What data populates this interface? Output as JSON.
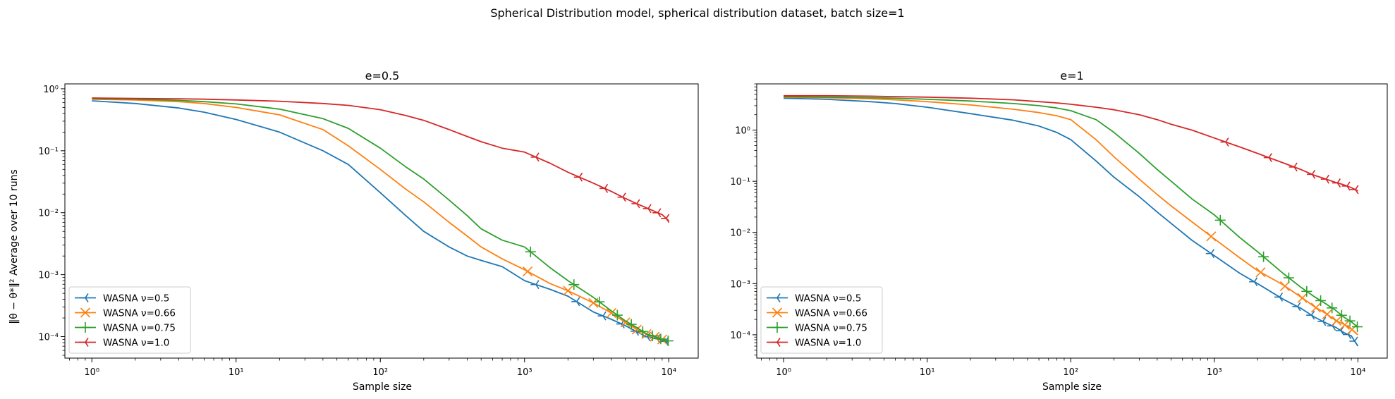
{
  "figure": {
    "suptitle": "Spherical Distribution model, spherical distribution dataset, batch size=1",
    "ylabel": "‖θ − θ*‖² Average over 10 runs"
  },
  "colors": {
    "WASNA ν=0.5": "#1f77b4",
    "WASNA ν=0.66": "#ff7f0e",
    "WASNA ν=0.75": "#2ca02c",
    "WASNA ν=1.0": "#d62728"
  },
  "markers": {
    "WASNA ν=0.5": "tri-left",
    "WASNA ν=0.66": "x",
    "WASNA ν=0.75": "plus",
    "WASNA ν=1.0": "tri-left"
  },
  "chart_data": [
    {
      "type": "line",
      "title": "e=0.5",
      "xlabel": "Sample size",
      "ylabel": "‖θ − θ*‖² Average over 10 runs",
      "xscale": "log",
      "yscale": "log",
      "xlim": [
        0.65,
        16000
      ],
      "ylim": [
        4.5e-05,
        1.2
      ],
      "xticks": [
        1,
        10,
        100,
        1000,
        10000
      ],
      "xtick_labels": [
        "10⁰",
        "10¹",
        "10²",
        "10³",
        "10⁴"
      ],
      "yticks": [
        0.0001,
        0.001,
        0.01,
        0.1,
        1
      ],
      "ytick_labels": [
        "10⁻⁴",
        "10⁻³",
        "10⁻²",
        "10⁻¹",
        "10⁰"
      ],
      "grid": false,
      "legend_position": "lower-left",
      "series": [
        {
          "name": "WASNA ν=0.5",
          "marker": "tri-left",
          "x": [
            1,
            2,
            4,
            6,
            10,
            20,
            40,
            60,
            100,
            150,
            200,
            300,
            400,
            500,
            700,
            1000,
            1500,
            2000,
            3000,
            4000,
            5000,
            6000,
            7000,
            8000,
            9000,
            10000
          ],
          "y": [
            0.64,
            0.58,
            0.49,
            0.42,
            0.32,
            0.2,
            0.1,
            0.06,
            0.021,
            0.009,
            0.005,
            0.0028,
            0.002,
            0.0017,
            0.00135,
            0.0008,
            0.00058,
            0.00045,
            0.00025,
            0.00019,
            0.00015,
            0.00012,
            0.0001,
            9.5e-05,
            8.8e-05,
            8e-05
          ],
          "markers_x": [
            1200,
            2300,
            3500,
            4700,
            5900,
            7100,
            8300,
            9500
          ]
        },
        {
          "name": "WASNA ν=0.66",
          "marker": "x",
          "x": [
            1,
            2,
            4,
            6,
            10,
            20,
            40,
            60,
            100,
            150,
            200,
            300,
            400,
            500,
            700,
            1000,
            1500,
            2000,
            3000,
            4000,
            5000,
            6000,
            7000,
            8000,
            9000,
            10000
          ],
          "y": [
            0.68,
            0.66,
            0.62,
            0.58,
            0.5,
            0.38,
            0.22,
            0.12,
            0.05,
            0.024,
            0.015,
            0.007,
            0.0042,
            0.0028,
            0.0018,
            0.0012,
            0.00072,
            0.00055,
            0.00035,
            0.00024,
            0.00017,
            0.00013,
            0.00011,
            0.0001,
            9e-05,
            8.5e-05
          ],
          "markers_x": [
            1050,
            2000,
            3000,
            4000,
            5000,
            6000,
            7000,
            8000,
            9000
          ]
        },
        {
          "name": "WASNA ν=0.75",
          "marker": "plus",
          "x": [
            1,
            2,
            4,
            6,
            10,
            20,
            40,
            60,
            100,
            150,
            200,
            300,
            400,
            500,
            700,
            1000,
            1500,
            2000,
            3000,
            4000,
            5000,
            6000,
            7000,
            8000,
            9000,
            10000
          ],
          "y": [
            0.69,
            0.68,
            0.65,
            0.62,
            0.57,
            0.47,
            0.33,
            0.23,
            0.11,
            0.055,
            0.035,
            0.016,
            0.009,
            0.0055,
            0.0036,
            0.0028,
            0.0013,
            0.0008,
            0.00043,
            0.00026,
            0.00018,
            0.00014,
            0.00011,
            0.0001,
            9e-05,
            8.5e-05
          ],
          "markers_x": [
            1100,
            2200,
            3300,
            4400,
            5500,
            6600,
            7700,
            8800,
            9900
          ]
        },
        {
          "name": "WASNA ν=1.0",
          "marker": "tri-left",
          "x": [
            1,
            2,
            4,
            6,
            10,
            20,
            40,
            60,
            100,
            150,
            200,
            300,
            400,
            500,
            700,
            1000,
            1500,
            2000,
            3000,
            4000,
            5000,
            6000,
            7000,
            8000,
            9000,
            10000
          ],
          "y": [
            0.71,
            0.7,
            0.69,
            0.68,
            0.66,
            0.63,
            0.58,
            0.54,
            0.46,
            0.37,
            0.31,
            0.22,
            0.17,
            0.14,
            0.11,
            0.095,
            0.063,
            0.045,
            0.03,
            0.022,
            0.017,
            0.014,
            0.012,
            0.0105,
            0.0093,
            0.0074
          ],
          "markers_x": [
            1200,
            2400,
            3600,
            4800,
            6000,
            7200,
            8400,
            9600
          ]
        }
      ]
    },
    {
      "type": "line",
      "title": "e=1",
      "xlabel": "Sample size",
      "ylabel": "",
      "xscale": "log",
      "yscale": "log",
      "xlim": [
        0.65,
        16000
      ],
      "ylim": [
        3.5e-05,
        8
      ],
      "xticks": [
        1,
        10,
        100,
        1000,
        10000
      ],
      "xtick_labels": [
        "10⁰",
        "10¹",
        "10²",
        "10³",
        "10⁴"
      ],
      "yticks": [
        0.0001,
        0.001,
        0.01,
        0.1,
        1
      ],
      "ytick_labels": [
        "10⁻⁴",
        "10⁻³",
        "10⁻²",
        "10⁻¹",
        "10⁰"
      ],
      "grid": false,
      "legend_position": "lower-left",
      "series": [
        {
          "name": "WASNA ν=0.5",
          "marker": "tri-left",
          "x": [
            1,
            2,
            4,
            6,
            10,
            20,
            40,
            60,
            80,
            100,
            150,
            200,
            300,
            400,
            500,
            700,
            1000,
            1500,
            2000,
            3000,
            4000,
            5000,
            6000,
            7000,
            8000,
            9000,
            10000
          ],
          "y": [
            4.2,
            4.0,
            3.6,
            3.3,
            2.8,
            2.1,
            1.55,
            1.2,
            0.9,
            0.65,
            0.25,
            0.12,
            0.05,
            0.025,
            0.015,
            0.007,
            0.0035,
            0.0016,
            0.001,
            0.0005,
            0.00033,
            0.00022,
            0.00017,
            0.00014,
            0.00011,
            9.5e-05,
            6e-05
          ],
          "markers_x": [
            950,
            1900,
            2850,
            3800,
            4750,
            5700,
            6650,
            7600,
            8550,
            9500
          ]
        },
        {
          "name": "WASNA ν=0.66",
          "marker": "x",
          "x": [
            1,
            2,
            4,
            6,
            10,
            20,
            40,
            60,
            80,
            100,
            150,
            200,
            300,
            400,
            500,
            700,
            1000,
            1500,
            2000,
            3000,
            4000,
            5000,
            6000,
            7000,
            8000,
            9000,
            10000
          ],
          "y": [
            4.4,
            4.3,
            4.1,
            3.9,
            3.6,
            3.1,
            2.55,
            2.2,
            1.9,
            1.6,
            0.65,
            0.3,
            0.11,
            0.055,
            0.033,
            0.016,
            0.0075,
            0.0032,
            0.0018,
            0.00095,
            0.00055,
            0.00035,
            0.00026,
            0.00019,
            0.00016,
            0.00013,
            0.0001
          ],
          "markers_x": [
            950,
            2100,
            3100,
            4100,
            5100,
            6100,
            7100,
            8100,
            9100
          ]
        },
        {
          "name": "WASNA ν=0.75",
          "marker": "plus",
          "x": [
            1,
            2,
            4,
            6,
            10,
            20,
            40,
            60,
            80,
            100,
            150,
            200,
            300,
            400,
            500,
            700,
            1000,
            1500,
            2000,
            3000,
            4000,
            5000,
            6000,
            7000,
            8000,
            9000,
            10000
          ],
          "y": [
            4.5,
            4.4,
            4.3,
            4.2,
            4.0,
            3.7,
            3.3,
            3.0,
            2.7,
            2.4,
            1.6,
            0.9,
            0.35,
            0.17,
            0.1,
            0.045,
            0.022,
            0.008,
            0.0042,
            0.0016,
            0.00085,
            0.00055,
            0.0004,
            0.0003,
            0.00022,
            0.00018,
            0.00014
          ],
          "markers_x": [
            1100,
            2200,
            3300,
            4400,
            5500,
            6600,
            7700,
            8800,
            9900
          ]
        },
        {
          "name": "WASNA ν=1.0",
          "marker": "tri-left",
          "x": [
            1,
            2,
            4,
            6,
            10,
            20,
            40,
            60,
            80,
            100,
            150,
            200,
            300,
            400,
            500,
            700,
            1000,
            1500,
            2000,
            3000,
            4000,
            5000,
            6000,
            7000,
            8000,
            9000,
            10000
          ],
          "y": [
            4.7,
            4.7,
            4.6,
            4.5,
            4.4,
            4.2,
            3.9,
            3.6,
            3.4,
            3.2,
            2.8,
            2.5,
            2.0,
            1.6,
            1.3,
            1.0,
            0.7,
            0.47,
            0.35,
            0.23,
            0.17,
            0.13,
            0.11,
            0.095,
            0.085,
            0.075,
            0.065
          ],
          "markers_x": [
            1200,
            2400,
            3600,
            4800,
            6000,
            7200,
            8400,
            9600
          ]
        }
      ]
    }
  ]
}
